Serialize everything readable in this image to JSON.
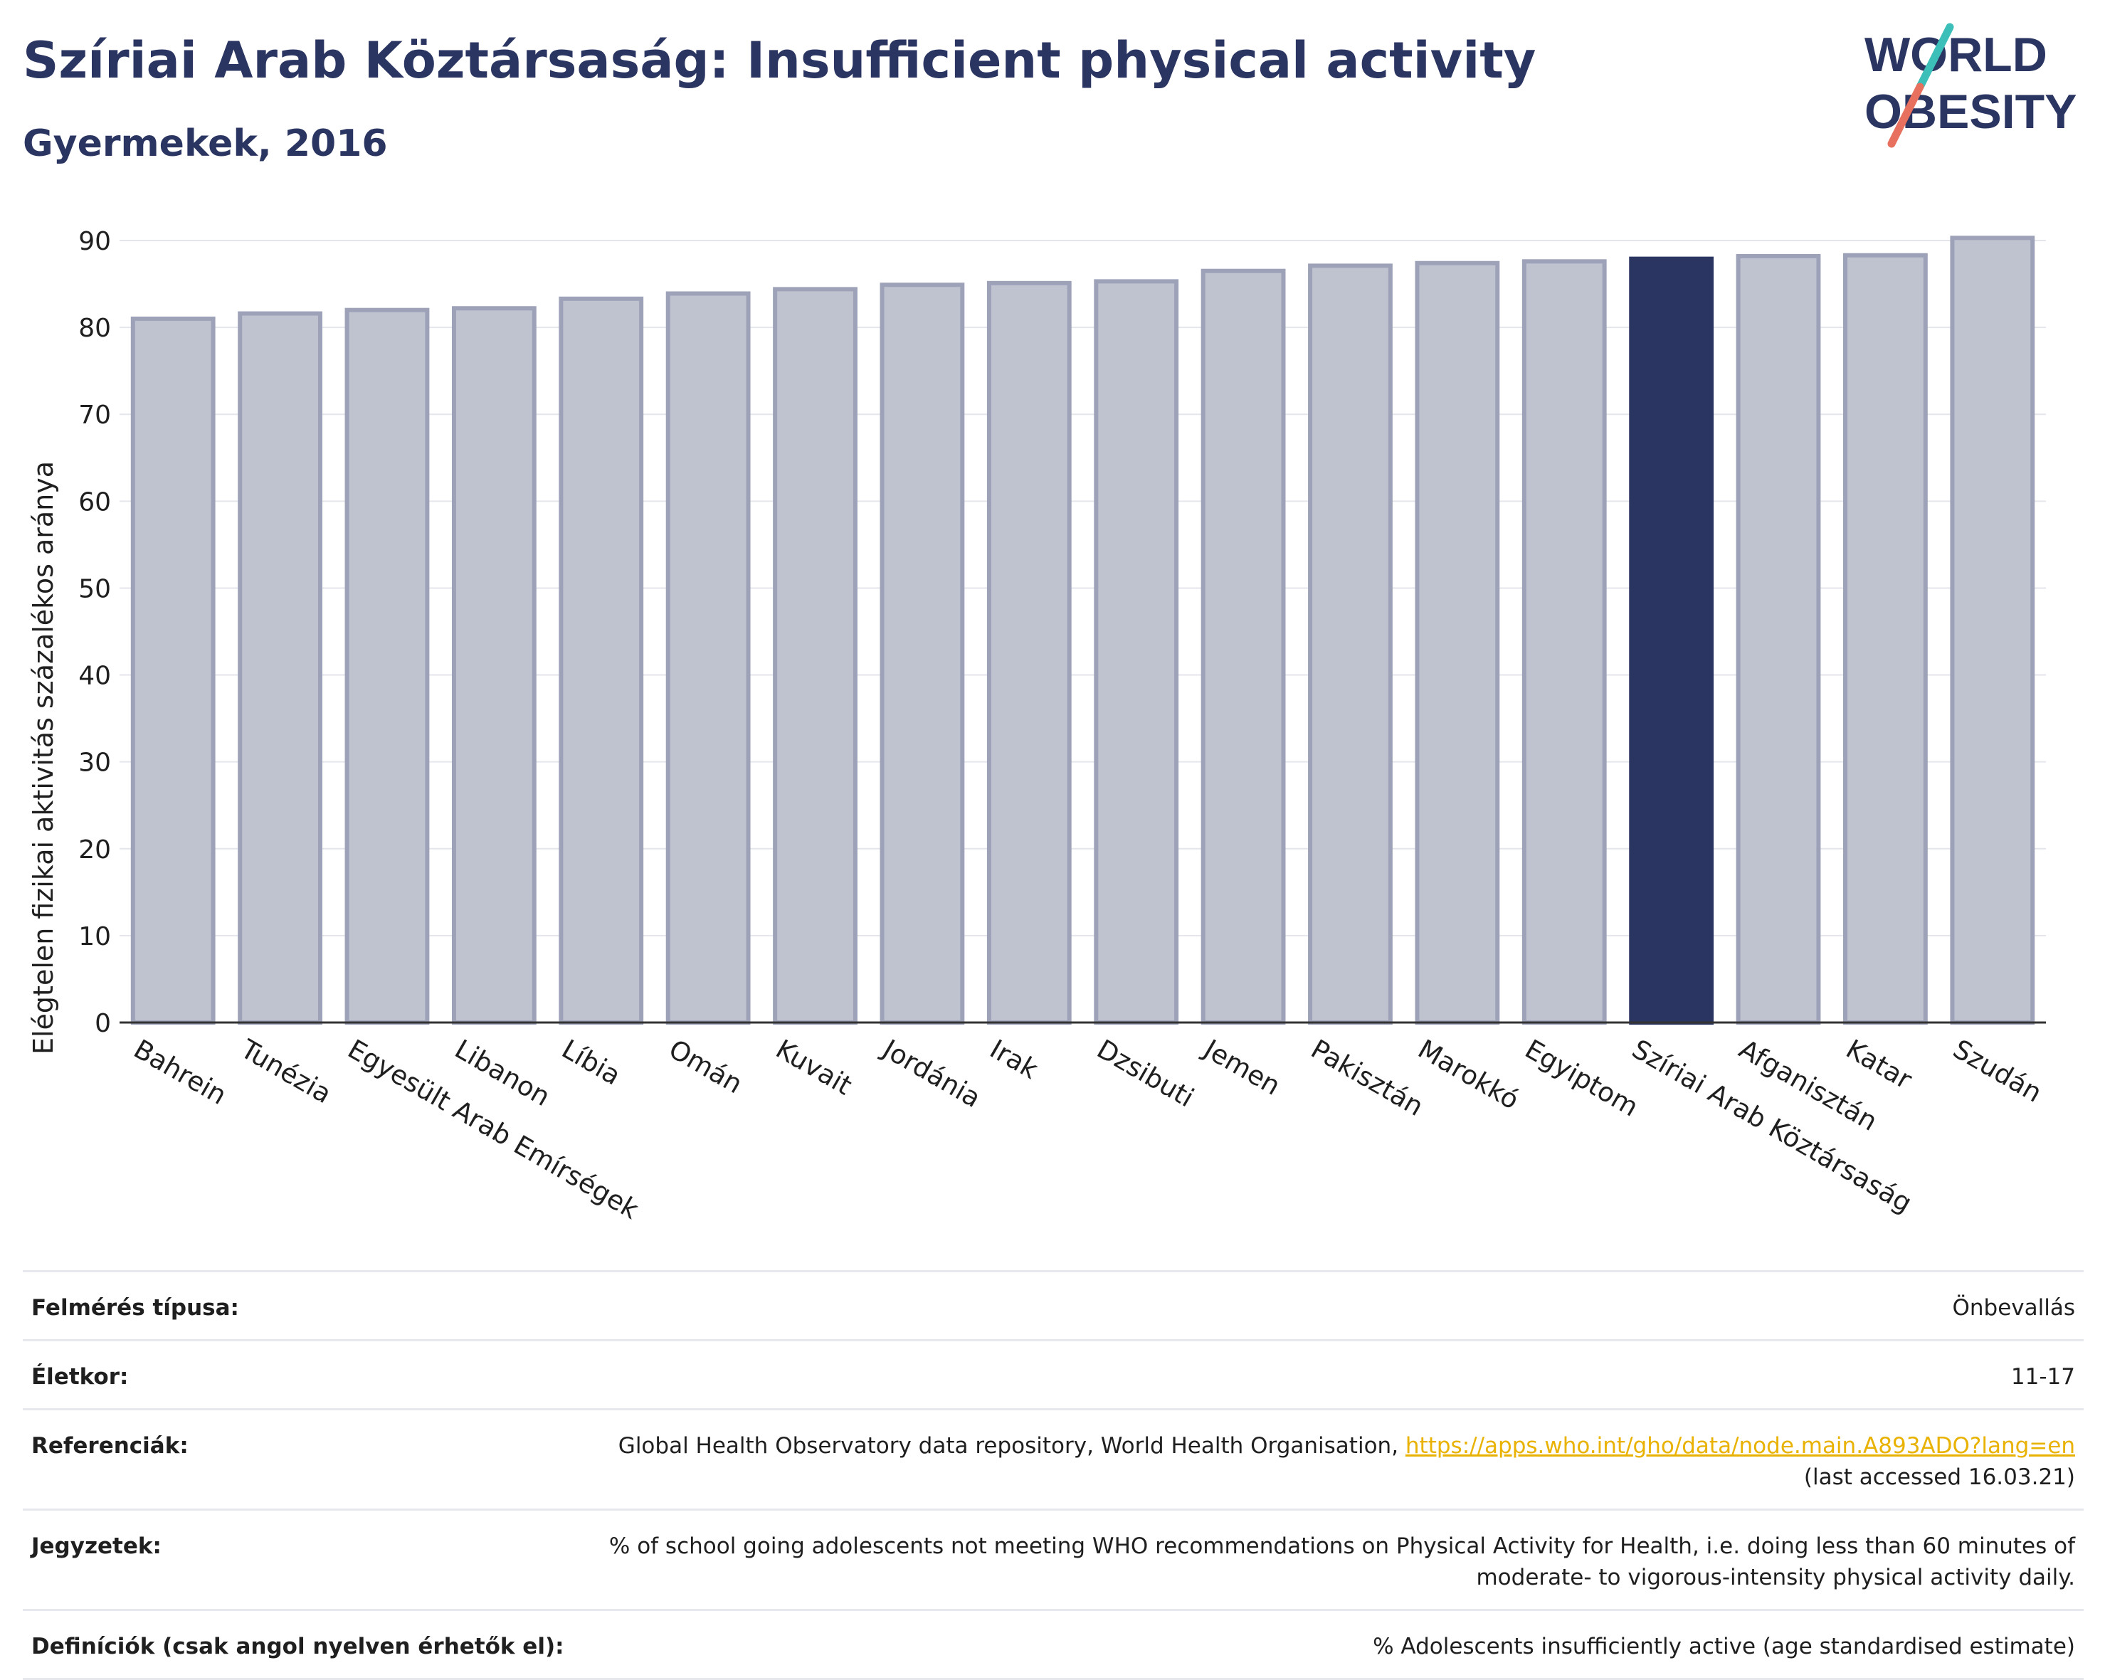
{
  "header": {
    "title": "Szíriai Arab Köztársaság: Insufficient physical activity",
    "subtitle": "Gyermekek, 2016"
  },
  "logo": {
    "line1": "WORLD",
    "line2": "OBESITY",
    "accent_teal": "#3bbfb8",
    "accent_coral": "#e8705f"
  },
  "colors": {
    "highlight": "#2b3561",
    "bar": "#bfc2cf",
    "bar_border": "#9da2b8",
    "grid": "#e4e6ec",
    "link": "#e9b200"
  },
  "chart_data": {
    "type": "bar",
    "ylabel": "Elégtelen fizikai aktivitás százalékos aránya",
    "ylim": [
      0,
      90
    ],
    "yticks": [
      0,
      10,
      20,
      30,
      40,
      50,
      60,
      70,
      80,
      90
    ],
    "categories": [
      "Bahrein",
      "Tunézia",
      "Egyesült Arab Emírségek",
      "Libanon",
      "Líbia",
      "Omán",
      "Kuvait",
      "Jordánia",
      "Irak",
      "Dzsibuti",
      "Jemen",
      "Pakisztán",
      "Marokkó",
      "Egyiptom",
      "Szíriai Arab Köztársaság",
      "Afganisztán",
      "Katar",
      "Szudán"
    ],
    "values": [
      81.0,
      81.6,
      82.0,
      82.2,
      83.3,
      83.9,
      84.4,
      84.9,
      85.1,
      85.3,
      86.5,
      87.1,
      87.4,
      87.6,
      87.9,
      88.2,
      88.3,
      90.3
    ],
    "highlight": "Szíriai Arab Köztársaság",
    "grid": true
  },
  "meta": {
    "survey_label": "Felmérés típusa:",
    "survey_value": "Önbevallás",
    "age_label": "Életkor:",
    "age_value": "11-17",
    "ref_label": "Referenciák:",
    "ref_text": "Global Health Observatory data repository, World Health Organisation, ",
    "ref_link": "https://apps.who.int/gho/data/node.main.A893ADO?lang=en",
    "ref_accessed": "(last accessed 16.03.21)",
    "notes_label": "Jegyzetek:",
    "notes_line1": "% of school going adolescents not meeting WHO recommendations on Physical Activity for Health, i.e. doing less than 60 minutes of",
    "notes_line2": "moderate- to vigorous-intensity physical activity daily.",
    "defs_label": "Definíciók (csak angol nyelven érhetők el):",
    "defs_value": "% Adolescents insufficiently active (age standardised estimate)"
  }
}
